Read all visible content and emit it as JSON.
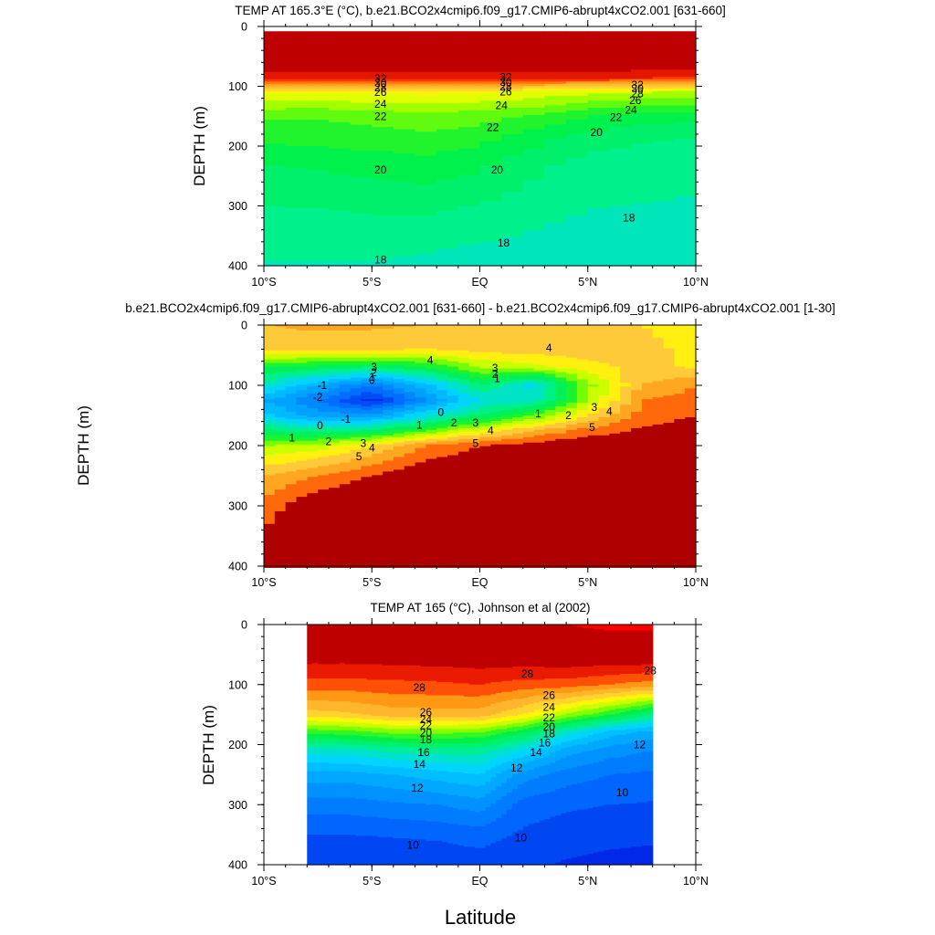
{
  "figure": {
    "ylabel_left": "DEPTH (m)",
    "xlabel": "Latitude"
  },
  "chart_data": [
    {
      "id": "p1",
      "type": "heatmap",
      "subtype": "filled-contour",
      "title": "TEMP AT 165.3°E (°C), b.e21.BCO2x4cmip6.f09_g17.CMIP6-abrupt4xCO2.001 [631-660]",
      "ylabel": "DEPTH (m)",
      "xlim": [
        -10,
        10
      ],
      "ylim": [
        0,
        400
      ],
      "xticks": [
        -10,
        -5,
        0,
        5,
        10
      ],
      "xtick_labels": [
        "10°S",
        "5°S",
        "EQ",
        "5°N",
        "10°N"
      ],
      "yticks": [
        0,
        100,
        200,
        300,
        400
      ],
      "ytick_labels": [
        "0",
        "100",
        "200",
        "300",
        "400"
      ],
      "x": [
        -10,
        -7.5,
        -5,
        -2.5,
        0,
        2.5,
        5,
        7.5,
        10
      ],
      "depth": [
        0,
        60,
        85,
        110,
        150,
        190,
        230,
        270,
        320,
        370,
        400
      ],
      "values": [
        [
          33,
          33,
          33,
          33,
          33,
          33,
          33,
          33,
          33
        ],
        [
          32.8,
          32.8,
          32.8,
          32.8,
          32.8,
          32.8,
          32.8,
          32.8,
          32.8
        ],
        [
          31.5,
          31.5,
          31.5,
          31.5,
          31.5,
          31.5,
          31.5,
          31.3,
          31
        ],
        [
          25,
          25,
          25.2,
          25.3,
          25.2,
          24.8,
          24.3,
          24,
          23.8
        ],
        [
          22.2,
          22.1,
          22.3,
          22.6,
          22.4,
          21.8,
          21,
          20.5,
          20.3
        ],
        [
          21.2,
          21.3,
          21.5,
          21.7,
          21.3,
          20.3,
          19.5,
          19.1,
          18.9
        ],
        [
          20,
          20.2,
          20.4,
          20.6,
          20.2,
          19.3,
          18.6,
          18.4,
          18.3
        ],
        [
          19.4,
          19.5,
          19.7,
          19.9,
          19.5,
          18.8,
          18.3,
          18.2,
          18.1
        ],
        [
          18.7,
          18.8,
          18.9,
          18.9,
          18.6,
          18.2,
          17.9,
          17.8,
          17.7
        ],
        [
          18.2,
          18.2,
          18.2,
          18.1,
          17.9,
          17.7,
          17.6,
          17.5,
          17.4
        ],
        [
          17.9,
          17.9,
          17.9,
          17.8,
          17.6,
          17.5,
          17.3,
          17.2,
          17.1
        ]
      ],
      "contour_labels": [
        {
          "text": "32",
          "lat": -4.6,
          "depth": 87
        },
        {
          "text": "30",
          "lat": -4.6,
          "depth": 95
        },
        {
          "text": "28",
          "lat": -4.6,
          "depth": 102
        },
        {
          "text": "26",
          "lat": -4.6,
          "depth": 110
        },
        {
          "text": "24",
          "lat": -4.6,
          "depth": 130
        },
        {
          "text": "22",
          "lat": -4.6,
          "depth": 150
        },
        {
          "text": "20",
          "lat": -4.6,
          "depth": 240
        },
        {
          "text": "18",
          "lat": -4.6,
          "depth": 390
        },
        {
          "text": "32",
          "lat": 1.2,
          "depth": 85
        },
        {
          "text": "30",
          "lat": 1.2,
          "depth": 93
        },
        {
          "text": "28",
          "lat": 1.2,
          "depth": 101
        },
        {
          "text": "26",
          "lat": 1.2,
          "depth": 109
        },
        {
          "text": "24",
          "lat": 1.0,
          "depth": 132
        },
        {
          "text": "22",
          "lat": 0.6,
          "depth": 169
        },
        {
          "text": "20",
          "lat": 0.8,
          "depth": 240
        },
        {
          "text": "18",
          "lat": 1.1,
          "depth": 362
        },
        {
          "text": "32",
          "lat": 7.3,
          "depth": 98
        },
        {
          "text": "30",
          "lat": 7.3,
          "depth": 104
        },
        {
          "text": "28",
          "lat": 7.3,
          "depth": 112
        },
        {
          "text": "26",
          "lat": 7.2,
          "depth": 124
        },
        {
          "text": "24",
          "lat": 7.0,
          "depth": 140
        },
        {
          "text": "22",
          "lat": 6.3,
          "depth": 152
        },
        {
          "text": "20",
          "lat": 5.4,
          "depth": 177
        },
        {
          "text": "18",
          "lat": 6.9,
          "depth": 320
        }
      ]
    },
    {
      "id": "p2",
      "type": "heatmap",
      "subtype": "filled-contour",
      "title": "b.e21.BCO2x4cmip6.f09_g17.CMIP6-abrupt4xCO2.001 [631-660] - b.e21.BCO2x4cmip6.f09_g17.CMIP6-abrupt4xCO2.001 [1-30]",
      "ylabel": "DEPTH (m)",
      "xlim": [
        -10,
        10
      ],
      "ylim": [
        0,
        400
      ],
      "xticks": [
        -10,
        -5,
        0,
        5,
        10
      ],
      "xtick_labels": [
        "10°S",
        "5°S",
        "EQ",
        "5°N",
        "10°N"
      ],
      "yticks": [
        0,
        100,
        200,
        300,
        400
      ],
      "ytick_labels": [
        "0",
        "100",
        "200",
        "300",
        "400"
      ],
      "x": [
        -10,
        -7.5,
        -5,
        -2.5,
        0,
        2.5,
        5,
        7.5,
        10
      ],
      "depth": [
        0,
        40,
        70,
        100,
        125,
        150,
        175,
        200,
        250,
        300,
        400
      ],
      "values": [
        [
          4.5,
          4.6,
          4.6,
          4.5,
          4.5,
          4.4,
          4.3,
          4.0,
          3.7
        ],
        [
          4.2,
          4.2,
          4.1,
          4.0,
          4.2,
          4.3,
          4.3,
          4.2,
          3.8
        ],
        [
          2.0,
          1.8,
          1.5,
          2.0,
          3.0,
          3.3,
          3.8,
          4.2,
          3.9
        ],
        [
          0.8,
          -0.5,
          -1.5,
          -0.2,
          1.5,
          0.3,
          2.8,
          4.5,
          5.0
        ],
        [
          -0.5,
          -1.5,
          -2.8,
          -1.0,
          0.5,
          0.8,
          3.0,
          5.0,
          5.2
        ],
        [
          0.2,
          -0.8,
          -0.8,
          0.5,
          1.5,
          2.5,
          4.0,
          5.2,
          5.5
        ],
        [
          1.5,
          1.2,
          1.5,
          2.5,
          3.5,
          4.5,
          5.2,
          5.6,
          5.8
        ],
        [
          3.0,
          3.2,
          4.0,
          5.0,
          5.5,
          5.8,
          6.0,
          6.0,
          6.0
        ],
        [
          4.5,
          5.0,
          5.5,
          6.0,
          6.2,
          6.3,
          6.3,
          6.3,
          6.3
        ],
        [
          5.2,
          6.0,
          6.3,
          6.5,
          6.5,
          6.5,
          6.5,
          6.5,
          6.5
        ],
        [
          6.0,
          6.5,
          6.6,
          6.6,
          6.6,
          6.6,
          6.6,
          6.6,
          6.6
        ]
      ],
      "contour_labels": [
        {
          "text": "4",
          "lat": -2.3,
          "depth": 58
        },
        {
          "text": "4",
          "lat": 3.2,
          "depth": 38
        },
        {
          "text": "3",
          "lat": -4.9,
          "depth": 70
        },
        {
          "text": "2",
          "lat": -4.9,
          "depth": 79
        },
        {
          "text": "1",
          "lat": -5.0,
          "depth": 86
        },
        {
          "text": "0",
          "lat": -5.0,
          "depth": 92
        },
        {
          "text": "-1",
          "lat": -7.3,
          "depth": 100
        },
        {
          "text": "-2",
          "lat": -7.5,
          "depth": 120
        },
        {
          "text": "-1",
          "lat": -6.2,
          "depth": 156
        },
        {
          "text": "0",
          "lat": -7.4,
          "depth": 167
        },
        {
          "text": "1",
          "lat": -8.7,
          "depth": 187
        },
        {
          "text": "2",
          "lat": -7.0,
          "depth": 193
        },
        {
          "text": "3",
          "lat": -5.4,
          "depth": 196
        },
        {
          "text": "4",
          "lat": -5.0,
          "depth": 204
        },
        {
          "text": "5",
          "lat": -5.6,
          "depth": 218
        },
        {
          "text": "3",
          "lat": 0.7,
          "depth": 71
        },
        {
          "text": "2",
          "lat": 0.7,
          "depth": 81
        },
        {
          "text": "1",
          "lat": 0.8,
          "depth": 89
        },
        {
          "text": "1",
          "lat": -2.8,
          "depth": 166
        },
        {
          "text": "0",
          "lat": -1.8,
          "depth": 145
        },
        {
          "text": "2",
          "lat": -1.2,
          "depth": 162
        },
        {
          "text": "3",
          "lat": -0.2,
          "depth": 162
        },
        {
          "text": "4",
          "lat": 0.5,
          "depth": 175
        },
        {
          "text": "5",
          "lat": -0.2,
          "depth": 196
        },
        {
          "text": "1",
          "lat": 2.7,
          "depth": 147
        },
        {
          "text": "2",
          "lat": 4.1,
          "depth": 150
        },
        {
          "text": "3",
          "lat": 5.3,
          "depth": 136
        },
        {
          "text": "4",
          "lat": 6.0,
          "depth": 143
        },
        {
          "text": "5",
          "lat": 5.2,
          "depth": 170
        }
      ]
    },
    {
      "id": "p3",
      "type": "heatmap",
      "subtype": "filled-contour",
      "title": "TEMP AT 165 (°C), Johnson et al (2002)",
      "ylabel": "DEPTH (m)",
      "xlim": [
        -10,
        10
      ],
      "ylim": [
        0,
        400
      ],
      "data_xlim": [
        -8,
        8
      ],
      "xticks": [
        -10,
        -5,
        0,
        5,
        10
      ],
      "xtick_labels": [
        "10°S",
        "5°S",
        "EQ",
        "5°N",
        "10°N"
      ],
      "yticks": [
        0,
        100,
        200,
        300,
        400
      ],
      "ytick_labels": [
        "0",
        "100",
        "200",
        "300",
        "400"
      ],
      "x": [
        -8,
        -6,
        -4,
        -2,
        0,
        2,
        4,
        6,
        8
      ],
      "depth": [
        0,
        60,
        100,
        150,
        180,
        210,
        250,
        300,
        350,
        400
      ],
      "values": [
        [
          29.6,
          29.6,
          29.7,
          29.8,
          29.7,
          29.9,
          30.0,
          30.1,
          30.1
        ],
        [
          29.2,
          29.2,
          29.3,
          29.4,
          29.5,
          29.5,
          29.6,
          29.5,
          29.5
        ],
        [
          27.6,
          27.6,
          27.7,
          27.8,
          28.0,
          27.6,
          27.5,
          27.0,
          26.5
        ],
        [
          24.5,
          24.8,
          25.5,
          25.5,
          25.5,
          24.0,
          22.0,
          20.0,
          18.0
        ],
        [
          20.2,
          20.5,
          21.2,
          21.2,
          21.0,
          19.2,
          16.5,
          14.5,
          13.5
        ],
        [
          16.5,
          16.6,
          17.3,
          17.5,
          17.5,
          15.8,
          13.5,
          12.5,
          12.0
        ],
        [
          13.6,
          13.6,
          14.0,
          14.5,
          15.0,
          12.5,
          11.5,
          11.0,
          10.8
        ],
        [
          11.5,
          11.5,
          11.8,
          12.0,
          12.5,
          10.6,
          10.2,
          10.0,
          9.9
        ],
        [
          10.0,
          10.0,
          10.1,
          10.2,
          10.5,
          9.8,
          9.4,
          9.2,
          9.1
        ],
        [
          9.2,
          9.1,
          9.1,
          9.2,
          9.4,
          9.2,
          8.9,
          8.8,
          8.8
        ]
      ],
      "contour_labels": [
        {
          "text": "28",
          "lat": -2.8,
          "depth": 105
        },
        {
          "text": "28",
          "lat": 2.2,
          "depth": 82
        },
        {
          "text": "28",
          "lat": 7.9,
          "depth": 77
        },
        {
          "text": "26",
          "lat": -2.5,
          "depth": 146
        },
        {
          "text": "24",
          "lat": -2.5,
          "depth": 158
        },
        {
          "text": "22",
          "lat": -2.5,
          "depth": 168
        },
        {
          "text": "20",
          "lat": -2.5,
          "depth": 180
        },
        {
          "text": "18",
          "lat": -2.5,
          "depth": 192
        },
        {
          "text": "16",
          "lat": -2.6,
          "depth": 213
        },
        {
          "text": "14",
          "lat": -2.8,
          "depth": 233
        },
        {
          "text": "12",
          "lat": -2.9,
          "depth": 272
        },
        {
          "text": "26",
          "lat": 3.2,
          "depth": 118
        },
        {
          "text": "24",
          "lat": 3.2,
          "depth": 138
        },
        {
          "text": "22",
          "lat": 3.2,
          "depth": 155
        },
        {
          "text": "20",
          "lat": 3.2,
          "depth": 170
        },
        {
          "text": "18",
          "lat": 3.2,
          "depth": 182
        },
        {
          "text": "16",
          "lat": 3.0,
          "depth": 197
        },
        {
          "text": "14",
          "lat": 2.6,
          "depth": 213
        },
        {
          "text": "12",
          "lat": 1.7,
          "depth": 239
        },
        {
          "text": "12",
          "lat": 7.4,
          "depth": 200
        },
        {
          "text": "10",
          "lat": -3.1,
          "depth": 367
        },
        {
          "text": "10",
          "lat": 1.9,
          "depth": 355
        },
        {
          "text": "10",
          "lat": 6.6,
          "depth": 280
        }
      ]
    }
  ]
}
